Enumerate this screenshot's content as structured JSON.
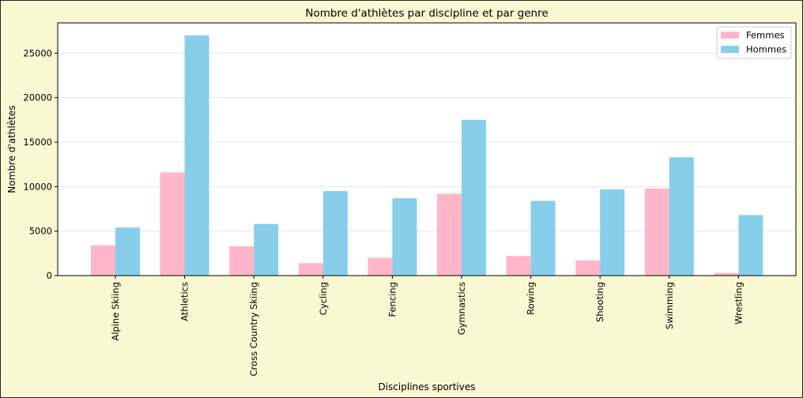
{
  "chart_data": {
    "type": "bar",
    "title": "Nombre d'athlètes par discipline et par genre",
    "xlabel": "Disciplines sportives",
    "ylabel": "Nombre d'athlètes",
    "ylim": [
      0,
      28400
    ],
    "yticks": [
      0,
      5000,
      10000,
      15000,
      20000,
      25000
    ],
    "grid": "horizontal",
    "legend_position": "top-right",
    "categories": [
      "Alpine Skiing",
      "Athletics",
      "Cross Country Skiing",
      "Cycling",
      "Fencing",
      "Gymnastics",
      "Rowing",
      "Shooting",
      "Swimming",
      "Wrestling"
    ],
    "series": [
      {
        "name": "Femmes",
        "color": "#ffb6c8",
        "values": [
          3400,
          11600,
          3300,
          1400,
          2000,
          9200,
          2200,
          1700,
          9800,
          300
        ]
      },
      {
        "name": "Hommes",
        "color": "#87ceeb",
        "values": [
          5400,
          27000,
          5800,
          9500,
          8700,
          17500,
          8400,
          9700,
          13300,
          6800
        ]
      }
    ]
  }
}
